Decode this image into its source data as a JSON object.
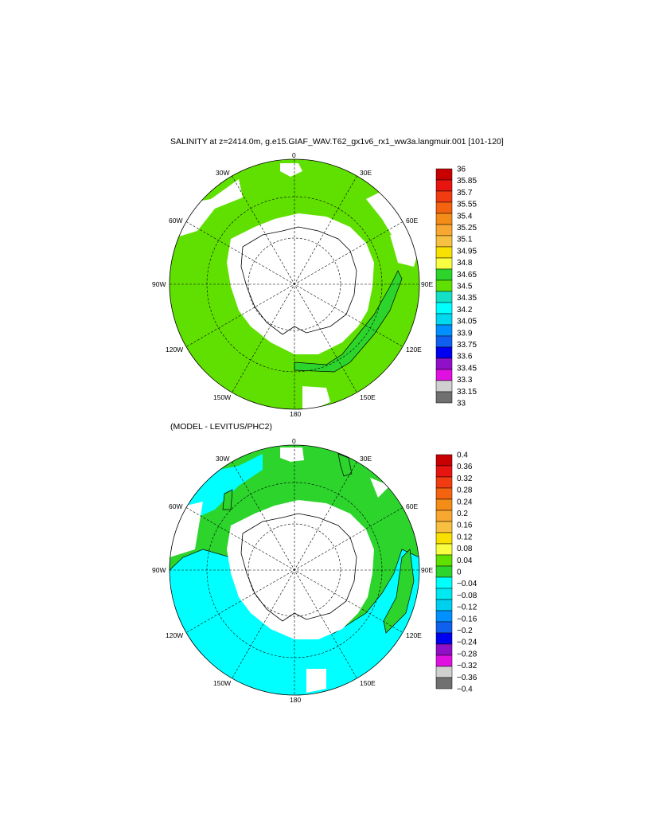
{
  "top_panel": {
    "title": "SALINITY at z=2414.0m, g.e15.GIAF_WAV.T62_gx1v6_rx1_ww3a.langmuir.001 [101-120]",
    "longitude_labels": [
      "0",
      "30E",
      "60E",
      "90E",
      "120E",
      "150E",
      "180",
      "150W",
      "120W",
      "90W",
      "60W",
      "30W"
    ],
    "colorbar": {
      "labels": [
        "36",
        "35.85",
        "35.7",
        "35.55",
        "35.4",
        "35.25",
        "35.1",
        "34.95",
        "34.8",
        "34.65",
        "34.5",
        "34.35",
        "34.2",
        "34.05",
        "33.9",
        "33.75",
        "33.6",
        "33.45",
        "33.3",
        "33.15",
        "33"
      ],
      "colors": [
        "#c80000",
        "#e81410",
        "#f03c10",
        "#f46410",
        "#f48c18",
        "#f8a830",
        "#f8c040",
        "#f8e000",
        "#f8ff40",
        "#2cd42c",
        "#60e000",
        "#14e0c8",
        "#00ffff",
        "#00d8f0",
        "#0090ff",
        "#1060f0",
        "#0000f0",
        "#9010c8",
        "#e010e0",
        "#d0d0d0",
        "#707070"
      ]
    },
    "field_colors": {
      "main": "#60e000",
      "secondary": "#2cd42c",
      "land": "#ffffff"
    }
  },
  "bottom_panel": {
    "title": "(MODEL - LEVITUS/PHC2)",
    "longitude_labels": [
      "0",
      "30E",
      "60E",
      "90E",
      "120E",
      "150E",
      "180",
      "150W",
      "120W",
      "90W",
      "60W",
      "30W"
    ],
    "colorbar": {
      "labels": [
        "0.4",
        "0.36",
        "0.32",
        "0.28",
        "0.24",
        "0.2",
        "0.16",
        "0.12",
        "0.08",
        "0.04",
        "0",
        "−0.04",
        "−0.08",
        "−0.12",
        "−0.16",
        "−0.2",
        "−0.24",
        "−0.28",
        "−0.32",
        "−0.36",
        "−0.4"
      ],
      "colors": [
        "#c80000",
        "#e81410",
        "#f03c10",
        "#f46410",
        "#f48c18",
        "#f8a830",
        "#f8c040",
        "#f8e000",
        "#f8ff40",
        "#60e000",
        "#2cd42c",
        "#00ffff",
        "#00e8f0",
        "#00d0f0",
        "#0090ff",
        "#1060f0",
        "#0000f0",
        "#9010c8",
        "#e010e0",
        "#d0d0d0",
        "#707070"
      ]
    },
    "field_colors": {
      "positive": "#2cd42c",
      "negative": "#00ffff",
      "land": "#ffffff"
    }
  }
}
